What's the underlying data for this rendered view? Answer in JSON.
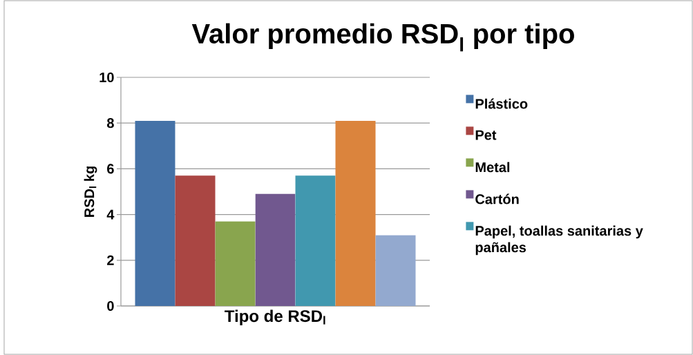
{
  "chart_data": {
    "type": "bar",
    "title": "Valor promedio RSD$_{l}$ por tipo",
    "xlabel": "Tipo de RSD$_{l}$",
    "ylabel": "RSD$_{l}$ kg",
    "categories": [
      null
    ],
    "series": [
      {
        "name": "Plástico",
        "color": "#4572a7",
        "values": [
          8.1
        ]
      },
      {
        "name": "Pet",
        "color": "#aa4643",
        "values": [
          5.7
        ]
      },
      {
        "name": "Metal",
        "color": "#89a54e",
        "values": [
          3.7
        ]
      },
      {
        "name": "Cartón",
        "color": "#71588f",
        "values": [
          4.9
        ]
      },
      {
        "name": "Papel, toallas sanitarias y pañales",
        "color": "#4198af",
        "values": [
          5.7
        ]
      },
      {
        "color": "#db843d",
        "values": [
          8.1
        ]
      },
      {
        "color": "#93a9cf",
        "values": [
          3.1
        ]
      }
    ],
    "ylim": [
      0,
      10
    ],
    "yticks": [
      0,
      2,
      4,
      6,
      8,
      10
    ],
    "grid": "y",
    "legend": "right"
  }
}
